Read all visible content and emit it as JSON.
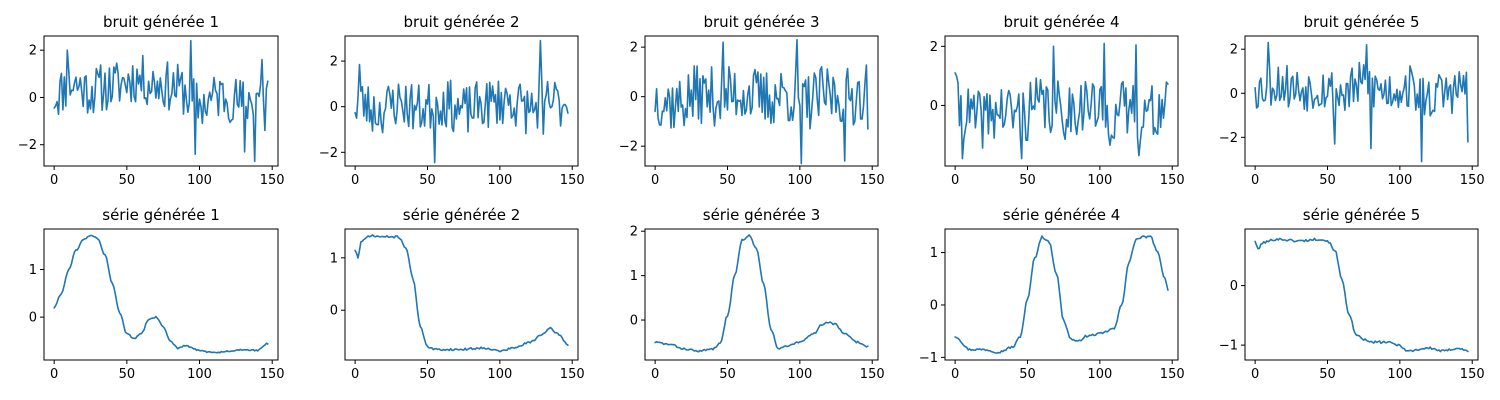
{
  "line_color": "#1f77b4",
  "chart_data": [
    {
      "type": "line",
      "title": "bruit générée 1",
      "xlim": [
        -7,
        154
      ],
      "ylim": [
        -2.9,
        2.6
      ],
      "xticks": [
        0,
        50,
        100,
        150
      ],
      "yticks": [
        -2,
        0,
        2
      ],
      "anchors": [
        [
          0,
          0.1
        ],
        [
          12,
          0.6
        ],
        [
          25,
          0.3
        ],
        [
          40,
          0.5
        ],
        [
          55,
          0.8
        ],
        [
          70,
          0.6
        ],
        [
          85,
          0.4
        ],
        [
          100,
          -0.3
        ],
        [
          115,
          0.1
        ],
        [
          130,
          -0.2
        ],
        [
          147,
          0.4
        ]
      ],
      "amplitude": 1.05,
      "spikes": [
        [
          9,
          2.0
        ],
        [
          94,
          2.4
        ],
        [
          97,
          -2.4
        ],
        [
          131,
          -2.3
        ],
        [
          138,
          -2.7
        ],
        [
          143,
          1.6
        ],
        [
          145,
          -1.4
        ]
      ],
      "seed": 11
    },
    {
      "type": "line",
      "title": "bruit générée 2",
      "xlim": [
        -7,
        154
      ],
      "ylim": [
        -2.6,
        3.1
      ],
      "xticks": [
        0,
        50,
        100,
        150
      ],
      "yticks": [
        -2,
        0,
        2
      ],
      "anchors": [
        [
          0,
          0.3
        ],
        [
          15,
          -0.2
        ],
        [
          30,
          0.2
        ],
        [
          45,
          -0.1
        ],
        [
          60,
          0.2
        ],
        [
          75,
          -0.2
        ],
        [
          90,
          0.1
        ],
        [
          105,
          0.3
        ],
        [
          120,
          -0.1
        ],
        [
          135,
          0.2
        ],
        [
          147,
          0.1
        ]
      ],
      "amplitude": 1.1,
      "spikes": [
        [
          1,
          -0.5
        ],
        [
          3,
          1.85
        ],
        [
          55,
          -2.45
        ],
        [
          128,
          2.9
        ],
        [
          130,
          -1.2
        ],
        [
          145,
          0.1
        ]
      ],
      "seed": 23
    },
    {
      "type": "line",
      "title": "bruit générée 3",
      "xlim": [
        -7,
        154
      ],
      "ylim": [
        -2.8,
        2.45
      ],
      "xticks": [
        0,
        50,
        100,
        150
      ],
      "yticks": [
        -2,
        0,
        2
      ],
      "anchors": [
        [
          0,
          0.0
        ],
        [
          15,
          -0.3
        ],
        [
          30,
          0.1
        ],
        [
          45,
          0.0
        ],
        [
          60,
          0.2
        ],
        [
          75,
          -0.1
        ],
        [
          90,
          0.1
        ],
        [
          105,
          -0.2
        ],
        [
          120,
          0.1
        ],
        [
          135,
          0.0
        ],
        [
          147,
          0.3
        ]
      ],
      "amplitude": 1.2,
      "spikes": [
        [
          47,
          2.2
        ],
        [
          98,
          2.3
        ],
        [
          101,
          -2.7
        ],
        [
          131,
          -2.6
        ],
        [
          141,
          0.6
        ],
        [
          147,
          -1.3
        ]
      ],
      "seed": 37
    },
    {
      "type": "line",
      "title": "bruit générée 4",
      "xlim": [
        -7,
        154
      ],
      "ylim": [
        -2.05,
        2.35
      ],
      "xticks": [
        0,
        50,
        100,
        150
      ],
      "yticks": [
        0,
        2
      ],
      "anchors": [
        [
          0,
          0.0
        ],
        [
          15,
          -0.5
        ],
        [
          30,
          -0.2
        ],
        [
          45,
          -0.3
        ],
        [
          60,
          0.0
        ],
        [
          75,
          -0.2
        ],
        [
          90,
          0.1
        ],
        [
          105,
          -0.4
        ],
        [
          120,
          -0.1
        ],
        [
          135,
          -0.3
        ],
        [
          147,
          0.0
        ]
      ],
      "amplitude": 1.0,
      "spikes": [
        [
          0,
          1.1
        ],
        [
          5,
          -1.8
        ],
        [
          46,
          -1.8
        ],
        [
          68,
          2.0
        ],
        [
          103,
          2.1
        ],
        [
          125,
          2.05
        ],
        [
          127,
          -1.7
        ]
      ],
      "seed": 41
    },
    {
      "type": "line",
      "title": "bruit générée 5",
      "xlim": [
        -7,
        154
      ],
      "ylim": [
        -3.3,
        2.6
      ],
      "xticks": [
        0,
        50,
        100,
        150
      ],
      "yticks": [
        -2,
        0,
        2
      ],
      "anchors": [
        [
          0,
          0.2
        ],
        [
          15,
          0.5
        ],
        [
          30,
          0.2
        ],
        [
          45,
          0.3
        ],
        [
          60,
          0.0
        ],
        [
          75,
          0.4
        ],
        [
          90,
          0.1
        ],
        [
          105,
          0.3
        ],
        [
          120,
          -0.2
        ],
        [
          135,
          0.1
        ],
        [
          147,
          0.2
        ]
      ],
      "amplitude": 1.05,
      "spikes": [
        [
          0,
          0.25
        ],
        [
          9,
          2.3
        ],
        [
          55,
          -2.3
        ],
        [
          77,
          2.2
        ],
        [
          80,
          -2.5
        ],
        [
          115,
          -3.1
        ],
        [
          144,
          0.8
        ],
        [
          147,
          -2.2
        ]
      ],
      "seed": 53
    },
    {
      "type": "line",
      "title": "série générée 1",
      "xlim": [
        -7,
        154
      ],
      "ylim": [
        -0.9,
        1.85
      ],
      "xticks": [
        0,
        50,
        100,
        150
      ],
      "yticks": [
        0,
        1
      ],
      "anchors": [
        [
          0,
          0.2
        ],
        [
          5,
          0.5
        ],
        [
          10,
          1.0
        ],
        [
          15,
          1.4
        ],
        [
          20,
          1.62
        ],
        [
          25,
          1.72
        ],
        [
          30,
          1.65
        ],
        [
          35,
          1.3
        ],
        [
          40,
          0.7
        ],
        [
          45,
          0.1
        ],
        [
          50,
          -0.35
        ],
        [
          55,
          -0.45
        ],
        [
          60,
          -0.35
        ],
        [
          65,
          -0.05
        ],
        [
          70,
          0.0
        ],
        [
          75,
          -0.2
        ],
        [
          80,
          -0.5
        ],
        [
          85,
          -0.65
        ],
        [
          90,
          -0.6
        ],
        [
          100,
          -0.7
        ],
        [
          110,
          -0.75
        ],
        [
          120,
          -0.72
        ],
        [
          130,
          -0.68
        ],
        [
          140,
          -0.7
        ],
        [
          147,
          -0.55
        ]
      ],
      "noise": 0.015,
      "seed": 61
    },
    {
      "type": "line",
      "title": "série générée 2",
      "xlim": [
        -7,
        154
      ],
      "ylim": [
        -0.95,
        1.55
      ],
      "xticks": [
        0,
        50,
        100,
        150
      ],
      "yticks": [
        0,
        1
      ],
      "anchors": [
        [
          0,
          1.15
        ],
        [
          2,
          1.0
        ],
        [
          4,
          1.3
        ],
        [
          10,
          1.42
        ],
        [
          20,
          1.4
        ],
        [
          30,
          1.4
        ],
        [
          35,
          1.2
        ],
        [
          40,
          0.6
        ],
        [
          45,
          -0.3
        ],
        [
          50,
          -0.7
        ],
        [
          55,
          -0.75
        ],
        [
          70,
          -0.75
        ],
        [
          90,
          -0.72
        ],
        [
          100,
          -0.78
        ],
        [
          110,
          -0.72
        ],
        [
          120,
          -0.62
        ],
        [
          130,
          -0.45
        ],
        [
          135,
          -0.35
        ],
        [
          140,
          -0.45
        ],
        [
          147,
          -0.65
        ]
      ],
      "noise": 0.02,
      "seed": 71
    },
    {
      "type": "line",
      "title": "série générée 3",
      "xlim": [
        -7,
        154
      ],
      "ylim": [
        -0.9,
        2.05
      ],
      "xticks": [
        0,
        50,
        100,
        150
      ],
      "yticks": [
        0,
        1,
        2
      ],
      "anchors": [
        [
          0,
          -0.5
        ],
        [
          10,
          -0.55
        ],
        [
          20,
          -0.65
        ],
        [
          30,
          -0.7
        ],
        [
          40,
          -0.65
        ],
        [
          45,
          -0.5
        ],
        [
          50,
          0.1
        ],
        [
          55,
          1.0
        ],
        [
          60,
          1.8
        ],
        [
          65,
          1.9
        ],
        [
          70,
          1.6
        ],
        [
          75,
          0.8
        ],
        [
          80,
          -0.2
        ],
        [
          85,
          -0.65
        ],
        [
          90,
          -0.6
        ],
        [
          100,
          -0.5
        ],
        [
          110,
          -0.3
        ],
        [
          115,
          -0.1
        ],
        [
          120,
          -0.05
        ],
        [
          125,
          -0.1
        ],
        [
          130,
          -0.3
        ],
        [
          140,
          -0.5
        ],
        [
          147,
          -0.6
        ]
      ],
      "noise": 0.02,
      "seed": 83
    },
    {
      "type": "line",
      "title": "série générée 4",
      "xlim": [
        -7,
        154
      ],
      "ylim": [
        -1.05,
        1.45
      ],
      "xticks": [
        0,
        50,
        100,
        150
      ],
      "yticks": [
        -1,
        0,
        1
      ],
      "anchors": [
        [
          0,
          -0.6
        ],
        [
          10,
          -0.85
        ],
        [
          20,
          -0.85
        ],
        [
          30,
          -0.9
        ],
        [
          40,
          -0.8
        ],
        [
          45,
          -0.6
        ],
        [
          50,
          0.1
        ],
        [
          55,
          0.9
        ],
        [
          60,
          1.3
        ],
        [
          65,
          1.2
        ],
        [
          70,
          0.6
        ],
        [
          75,
          -0.3
        ],
        [
          80,
          -0.65
        ],
        [
          85,
          -0.7
        ],
        [
          90,
          -0.6
        ],
        [
          100,
          -0.55
        ],
        [
          110,
          -0.45
        ],
        [
          115,
          0.0
        ],
        [
          120,
          0.8
        ],
        [
          125,
          1.25
        ],
        [
          130,
          1.3
        ],
        [
          135,
          1.3
        ],
        [
          140,
          1.0
        ],
        [
          145,
          0.5
        ],
        [
          147,
          0.3
        ]
      ],
      "noise": 0.02,
      "seed": 97
    },
    {
      "type": "line",
      "title": "série générée 5",
      "xlim": [
        -7,
        154
      ],
      "ylim": [
        -1.25,
        0.95
      ],
      "xticks": [
        0,
        50,
        100,
        150
      ],
      "yticks": [
        -1,
        0
      ],
      "anchors": [
        [
          0,
          0.75
        ],
        [
          2,
          0.6
        ],
        [
          5,
          0.72
        ],
        [
          15,
          0.78
        ],
        [
          30,
          0.75
        ],
        [
          45,
          0.78
        ],
        [
          50,
          0.75
        ],
        [
          55,
          0.6
        ],
        [
          60,
          0.1
        ],
        [
          65,
          -0.5
        ],
        [
          70,
          -0.85
        ],
        [
          80,
          -0.95
        ],
        [
          90,
          -0.95
        ],
        [
          100,
          -1.0
        ],
        [
          105,
          -1.1
        ],
        [
          120,
          -1.05
        ],
        [
          130,
          -1.1
        ],
        [
          140,
          -1.05
        ],
        [
          147,
          -1.1
        ]
      ],
      "noise": 0.02,
      "seed": 101
    }
  ]
}
